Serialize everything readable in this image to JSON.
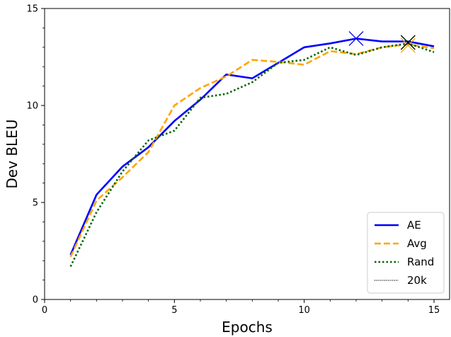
{
  "chart_data": {
    "type": "line",
    "title": "",
    "xlabel": "Epochs",
    "ylabel": "Dev BLEU",
    "xlim": [
      0,
      15.6
    ],
    "ylim": [
      0,
      15
    ],
    "xticks": [
      0,
      5,
      10,
      15
    ],
    "yticks": [
      0,
      5,
      10,
      15
    ],
    "grid": false,
    "legend_position": "lower-right",
    "series": [
      {
        "name": "AE",
        "color": "#0000ff",
        "line_style": "solid",
        "x": [
          1,
          2,
          3,
          4,
          5,
          6,
          7,
          8,
          9,
          10,
          11,
          12,
          13,
          14,
          15
        ],
        "values": [
          2.3,
          5.4,
          6.85,
          7.85,
          9.2,
          10.3,
          11.6,
          11.4,
          12.2,
          13.0,
          13.2,
          13.45,
          13.3,
          13.3,
          13.05
        ],
        "best_marker": {
          "x": 12,
          "y": 13.45,
          "symbol": "x"
        }
      },
      {
        "name": "Avg",
        "color": "#ffa500",
        "line_style": "dashed",
        "x": [
          1,
          2,
          3,
          4,
          5,
          6,
          7,
          8,
          9,
          10,
          11,
          12,
          13,
          14,
          15
        ],
        "values": [
          2.2,
          5.1,
          6.3,
          7.6,
          10.0,
          10.9,
          11.5,
          12.35,
          12.25,
          12.1,
          12.8,
          12.65,
          13.0,
          13.15,
          12.95
        ],
        "best_marker": {
          "x": 14,
          "y": 13.1,
          "symbol": "x"
        }
      },
      {
        "name": "Rand",
        "color": "#006400",
        "line_style": "dotted",
        "x": [
          1,
          2,
          3,
          4,
          5,
          6,
          7,
          8,
          9,
          10,
          11,
          12,
          13,
          14,
          15
        ],
        "values": [
          1.7,
          4.5,
          6.6,
          8.2,
          8.7,
          10.4,
          10.6,
          11.2,
          12.2,
          12.35,
          13.0,
          12.6,
          13.0,
          13.2,
          12.75
        ],
        "best_marker": {
          "x": 14,
          "y": 13.25,
          "symbol": "x"
        }
      },
      {
        "name": "20k",
        "color": "#000000",
        "line_style": "fine-dotted",
        "x": [],
        "values": [],
        "best_marker": {
          "x": 14,
          "y": 13.25,
          "symbol": "x"
        }
      }
    ]
  }
}
